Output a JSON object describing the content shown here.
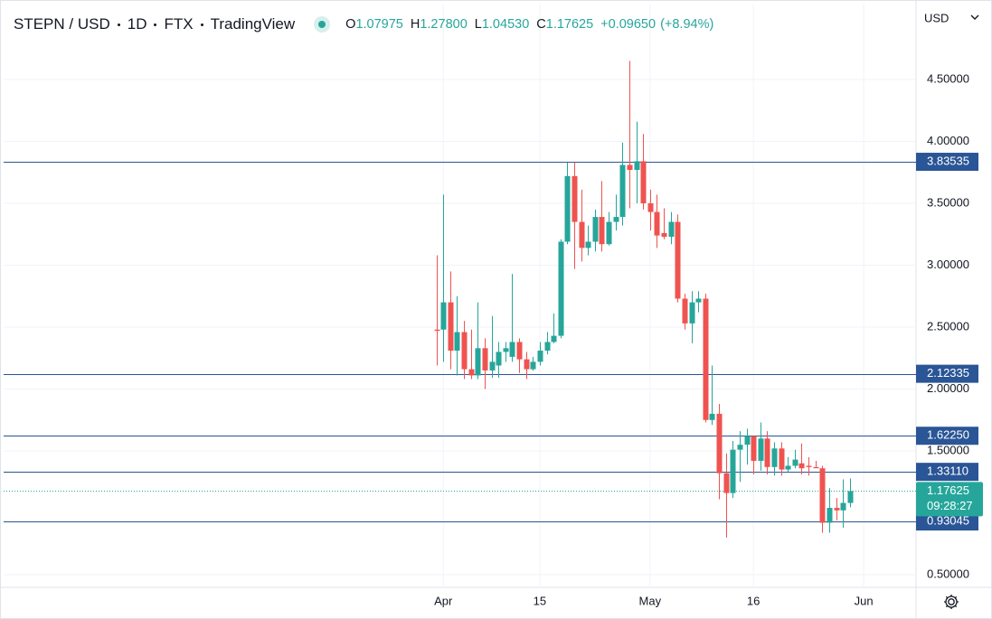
{
  "chart_data": {
    "type": "candlestick",
    "title": "STEPN / USD",
    "interval": "1D",
    "exchange": "FTX",
    "source": "TradingView",
    "currency": "USD",
    "ohlc_header": [
      {
        "label": "O",
        "value": "1.07975"
      },
      {
        "label": "H",
        "value": "1.27800"
      },
      {
        "label": "L",
        "value": "1.04530"
      },
      {
        "label": "C",
        "value": "1.17625"
      }
    ],
    "change": "+0.09650",
    "change_percent": "(+8.94%)",
    "up_color": "#26a69a",
    "down_color": "#ef5350",
    "x": [
      -1,
      0,
      1,
      2,
      3,
      4,
      5,
      6,
      7,
      8,
      9,
      10,
      11,
      12,
      13,
      14,
      15,
      16,
      17,
      18,
      19,
      20,
      21,
      22,
      23,
      24,
      25,
      26,
      27,
      28,
      29,
      30,
      31,
      32,
      33,
      34,
      35,
      36,
      37,
      38,
      39,
      40,
      41,
      42,
      43,
      44,
      45,
      46,
      47,
      48,
      49,
      50,
      51,
      52,
      53,
      54,
      55,
      56,
      57,
      58,
      59
    ],
    "open": [
      2.48,
      2.48,
      2.7,
      2.31,
      2.46,
      2.16,
      2.11,
      2.33,
      2.15,
      2.19,
      2.3,
      2.26,
      2.38,
      2.24,
      2.16,
      2.22,
      2.31,
      2.38,
      2.43,
      3.19,
      3.72,
      3.35,
      3.14,
      3.19,
      3.39,
      3.17,
      3.35,
      3.39,
      3.81,
      3.77,
      3.84,
      3.5,
      3.43,
      3.26,
      3.23,
      3.35,
      2.73,
      2.53,
      2.7,
      2.73,
      1.75,
      1.8,
      1.32,
      1.16,
      1.51,
      1.55,
      1.62,
      1.42,
      1.6,
      1.37,
      1.52,
      1.35,
      1.38,
      1.4,
      1.38,
      1.37,
      1.36,
      0.92,
      1.04,
      1.02,
      1.07975
    ],
    "high": [
      3.08,
      3.57,
      2.95,
      2.75,
      2.55,
      2.48,
      2.7,
      2.41,
      2.59,
      2.38,
      2.38,
      2.93,
      2.41,
      2.3,
      2.26,
      2.38,
      2.46,
      2.61,
      3.21,
      3.83,
      3.83,
      3.61,
      3.32,
      3.45,
      3.68,
      3.43,
      3.57,
      3.99,
      4.65,
      4.16,
      4.06,
      3.61,
      3.57,
      3.46,
      3.43,
      3.41,
      2.77,
      2.79,
      2.79,
      2.77,
      2.19,
      1.88,
      1.48,
      1.58,
      1.66,
      1.68,
      1.62,
      1.73,
      1.66,
      1.57,
      1.57,
      1.45,
      1.51,
      1.56,
      1.45,
      1.42,
      1.38,
      1.2,
      1.12,
      1.27,
      1.278
    ],
    "low": [
      2.19,
      2.22,
      2.16,
      2.11,
      2.08,
      2.08,
      2.08,
      2.0,
      2.09,
      2.09,
      2.22,
      2.22,
      2.13,
      2.08,
      2.15,
      2.19,
      2.28,
      2.37,
      2.41,
      3.17,
      2.97,
      3.03,
      3.08,
      3.11,
      3.11,
      3.16,
      3.28,
      3.32,
      3.46,
      3.5,
      3.45,
      3.28,
      3.14,
      3.21,
      3.17,
      2.7,
      2.48,
      2.37,
      2.62,
      1.73,
      1.71,
      1.11,
      0.8,
      1.12,
      1.25,
      1.39,
      1.31,
      1.34,
      1.31,
      1.3,
      1.3,
      1.33,
      1.36,
      1.31,
      1.3,
      1.37,
      0.84,
      0.84,
      0.94,
      0.88,
      1.0453
    ],
    "close": [
      2.47,
      2.7,
      2.31,
      2.46,
      2.16,
      2.11,
      2.33,
      2.15,
      2.22,
      2.3,
      2.33,
      2.38,
      2.24,
      2.16,
      2.22,
      2.31,
      2.38,
      2.43,
      3.19,
      3.72,
      3.35,
      3.14,
      3.19,
      3.39,
      3.17,
      3.35,
      3.39,
      3.81,
      3.77,
      3.84,
      3.5,
      3.43,
      3.24,
      3.23,
      3.35,
      2.73,
      2.53,
      2.7,
      2.73,
      1.75,
      1.8,
      1.32,
      1.16,
      1.51,
      1.55,
      1.62,
      1.42,
      1.6,
      1.37,
      1.52,
      1.35,
      1.38,
      1.43,
      1.36,
      1.37,
      1.36,
      0.92,
      1.04,
      1.02,
      1.08,
      1.17625
    ],
    "xlim": [
      -63.8,
      68.6
    ],
    "xticks": [
      {
        "value": 0,
        "label": "Apr"
      },
      {
        "value": 14,
        "label": "15"
      },
      {
        "value": 30,
        "label": "May"
      },
      {
        "value": 45,
        "label": "16"
      },
      {
        "value": 61,
        "label": "Jun"
      }
    ],
    "ylim": [
      0.398,
      5.113
    ],
    "yticks": [
      {
        "value": 0.5,
        "label": "0.50000"
      },
      {
        "value": 1.5,
        "label": "1.50000"
      },
      {
        "value": 2.0,
        "label": "2.00000"
      },
      {
        "value": 2.5,
        "label": "2.50000"
      },
      {
        "value": 3.0,
        "label": "3.00000"
      },
      {
        "value": 3.5,
        "label": "3.50000"
      },
      {
        "value": 4.0,
        "label": "4.00000"
      },
      {
        "value": 4.5,
        "label": "4.50000"
      }
    ],
    "grid": true,
    "hlines": [
      {
        "value": 3.83535,
        "label": "3.83535"
      },
      {
        "value": 2.12335,
        "label": "2.12335"
      },
      {
        "value": 1.6225,
        "label": "1.62250"
      },
      {
        "value": 1.3311,
        "label": "1.33110"
      },
      {
        "value": 0.93045,
        "label": "0.93045"
      }
    ],
    "hline_color": "#2a5596",
    "last_price": {
      "value": 1.17625,
      "label": "1.17625"
    },
    "countdown": "09:28:27"
  }
}
